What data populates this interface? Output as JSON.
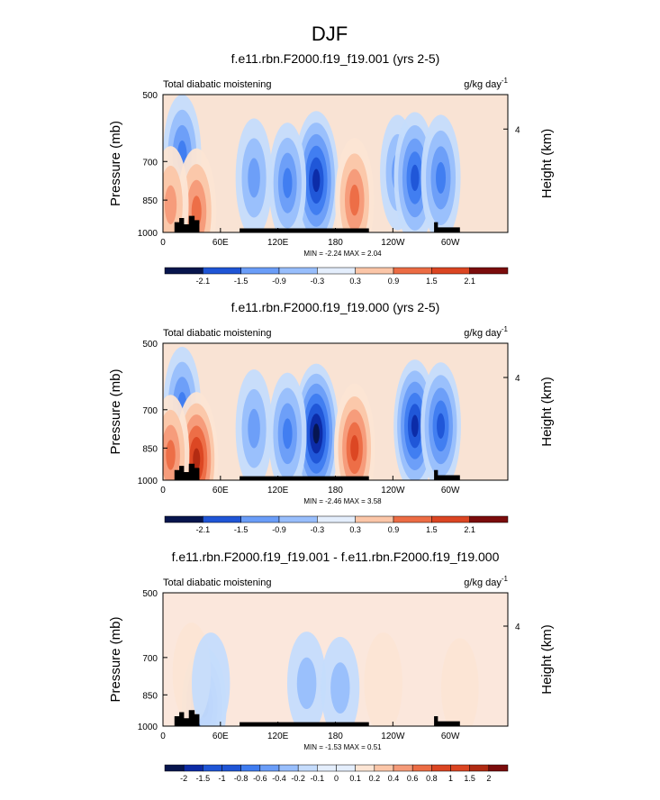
{
  "figure": {
    "title": "DJF",
    "xtick_labels": [
      "0",
      "60E",
      "120E",
      "180",
      "120W",
      "60W"
    ],
    "ytick_labels": [
      "500",
      "700",
      "850",
      "1000"
    ],
    "ylabel": "Pressure (mb)",
    "ylabel_right": "Height (km)",
    "right_tick_label": "4",
    "left_string": "Total diabatic moistening",
    "units": "g/kg day",
    "units_exponent": "-1"
  },
  "chart_data": [
    {
      "type": "heatmap",
      "title": "f.e11.rbn.F2000.f19_f19.001 (yrs 2-5)",
      "xlabel": "",
      "ylabel": "Pressure (mb)",
      "xlim": [
        0,
        360
      ],
      "ylim": [
        1000,
        500
      ],
      "stats": "MIN = -2.24  MAX =  2.04",
      "colorbar_labels": [
        "-2.1",
        "-1.5",
        "-0.9",
        "-0.3",
        "0.3",
        "0.9",
        "1.5",
        "2.1"
      ],
      "features": [
        {
          "lon": 160,
          "p": 770,
          "value": -2.2
        },
        {
          "lon": 130,
          "p": 780,
          "value": -1.2
        },
        {
          "lon": 95,
          "p": 760,
          "value": -1.1
        },
        {
          "lon": 20,
          "p": 680,
          "value": -1.3
        },
        {
          "lon": 245,
          "p": 740,
          "value": -0.9
        },
        {
          "lon": 263,
          "p": 760,
          "value": -1.8
        },
        {
          "lon": 290,
          "p": 760,
          "value": -1.5
        },
        {
          "lon": 200,
          "p": 850,
          "value": 1.4
        },
        {
          "lon": 35,
          "p": 900,
          "value": 1.5
        },
        {
          "lon": 8,
          "p": 870,
          "value": 1.0
        }
      ]
    },
    {
      "type": "heatmap",
      "title": "f.e11.rbn.F2000.f19_f19.000 (yrs 2-5)",
      "xlabel": "",
      "ylabel": "Pressure (mb)",
      "xlim": [
        0,
        360
      ],
      "ylim": [
        1000,
        500
      ],
      "stats": "MIN = -2.46  MAX =  3.58",
      "colorbar_labels": [
        "-2.1",
        "-1.5",
        "-0.9",
        "-0.3",
        "0.3",
        "0.9",
        "1.5",
        "2.1"
      ],
      "features": [
        {
          "lon": 160,
          "p": 790,
          "value": -2.3
        },
        {
          "lon": 130,
          "p": 790,
          "value": -1.3
        },
        {
          "lon": 95,
          "p": 770,
          "value": -1.1
        },
        {
          "lon": 20,
          "p": 690,
          "value": -1.2
        },
        {
          "lon": 263,
          "p": 760,
          "value": -1.9
        },
        {
          "lon": 290,
          "p": 760,
          "value": -1.6
        },
        {
          "lon": 200,
          "p": 850,
          "value": 1.7
        },
        {
          "lon": 35,
          "p": 900,
          "value": 2.0
        },
        {
          "lon": 8,
          "p": 880,
          "value": 1.2
        }
      ]
    },
    {
      "type": "heatmap",
      "title": "f.e11.rbn.F2000.f19_f19.001 - f.e11.rbn.F2000.f19_f19.000",
      "xlabel": "",
      "ylabel": "Pressure (mb)",
      "xlim": [
        0,
        360
      ],
      "ylim": [
        1000,
        500
      ],
      "stats": "MIN = -1.53  MAX =  0.51",
      "colorbar_labels": [
        "-2",
        "-1.5",
        "-1",
        "-0.8",
        "-0.6",
        "-0.4",
        "-0.2",
        "-0.1",
        "0",
        "0.1",
        "0.2",
        "0.4",
        "0.6",
        "0.8",
        "1",
        "1.5",
        "2"
      ],
      "features": [
        {
          "lon": 150,
          "p": 800,
          "value": -0.4
        },
        {
          "lon": 185,
          "p": 820,
          "value": -0.35
        },
        {
          "lon": 43,
          "p": 900,
          "value": -1.2
        },
        {
          "lon": 30,
          "p": 760,
          "value": 0.3
        },
        {
          "lon": 50,
          "p": 800,
          "value": -0.3
        },
        {
          "lon": 230,
          "p": 800,
          "value": 0.3
        },
        {
          "lon": 310,
          "p": 820,
          "value": 0.2
        }
      ]
    }
  ],
  "colors": {
    "palette": [
      "#07154d",
      "#0c2aa5",
      "#1f55d6",
      "#3f7cf0",
      "#6a9df8",
      "#98befc",
      "#c5dcfc",
      "#e4eefc",
      "#fce5d4",
      "#fbc6a8",
      "#f59a78",
      "#ec6c44",
      "#db4522",
      "#b02a12",
      "#7b0c0c"
    ],
    "topography": "#000000"
  }
}
